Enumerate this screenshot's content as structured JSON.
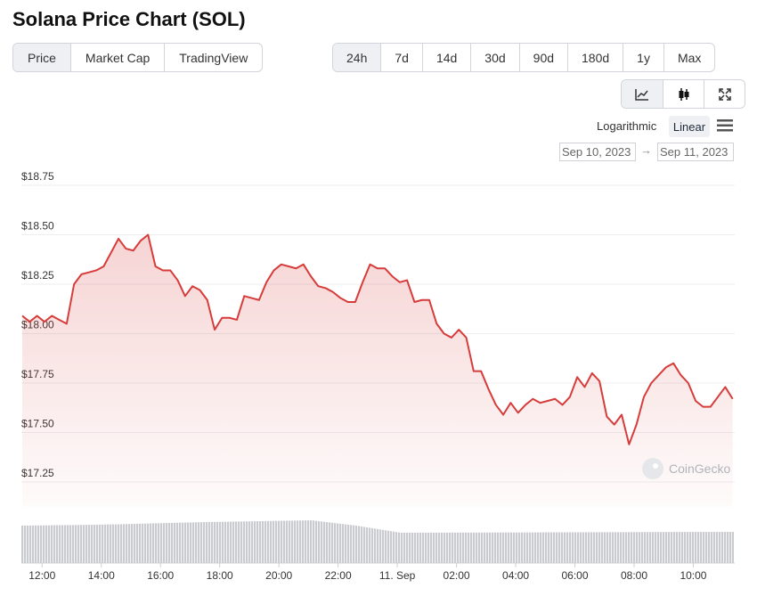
{
  "title": "Solana Price Chart (SOL)",
  "tabs": [
    "Price",
    "Market Cap",
    "TradingView"
  ],
  "ranges": [
    "24h",
    "7d",
    "14d",
    "30d",
    "90d",
    "180d",
    "1y",
    "Max"
  ],
  "scale_options": [
    "Logarithmic",
    "Linear"
  ],
  "date_from": "Sep 10, 2023",
  "date_to": "Sep 11, 2023",
  "watermark": "CoinGecko",
  "chart_data": {
    "type": "line",
    "color": "#d63c3a",
    "grid": true,
    "x": [
      -0.67,
      -0.42,
      -0.17,
      0.08,
      0.33,
      0.58,
      0.83,
      1.08,
      1.33,
      1.58,
      1.83,
      2.08,
      2.33,
      2.58,
      2.83,
      3.08,
      3.33,
      3.58,
      3.83,
      4.08,
      4.33,
      4.58,
      4.83,
      5.08,
      5.33,
      5.58,
      5.83,
      6.08,
      6.33,
      6.58,
      6.83,
      7.08,
      7.33,
      7.58,
      7.83,
      8.08,
      8.33,
      8.58,
      8.83,
      9.08,
      9.33,
      9.58,
      9.83,
      10.08,
      10.33,
      10.58,
      10.83,
      11.08,
      11.33,
      11.58,
      11.83,
      12.08,
      12.33,
      12.58,
      12.83,
      13.08,
      13.33,
      13.58,
      13.83,
      14.08,
      14.33,
      14.58,
      14.83,
      15.08,
      15.33,
      15.58,
      15.83,
      16.08,
      16.33,
      16.58,
      16.83,
      17.08,
      17.33,
      17.58,
      17.83,
      18.08,
      18.33,
      18.58,
      18.83,
      19.08,
      19.33,
      19.58,
      19.83,
      20.08,
      20.33,
      20.58,
      20.83,
      21.08,
      21.33,
      21.58,
      21.83,
      22.08,
      22.33,
      22.58,
      22.83,
      23.08,
      23.33
    ],
    "values": [
      18.09,
      18.06,
      18.09,
      18.06,
      18.09,
      18.07,
      18.05,
      18.25,
      18.3,
      18.31,
      18.32,
      18.34,
      18.41,
      18.48,
      18.43,
      18.42,
      18.47,
      18.5,
      18.34,
      18.32,
      18.32,
      18.27,
      18.19,
      18.24,
      18.22,
      18.17,
      18.02,
      18.08,
      18.08,
      18.07,
      18.19,
      18.18,
      18.17,
      18.26,
      18.32,
      18.35,
      18.34,
      18.33,
      18.35,
      18.29,
      18.24,
      18.23,
      18.21,
      18.18,
      18.16,
      18.16,
      18.26,
      18.35,
      18.33,
      18.33,
      18.29,
      18.26,
      18.27,
      18.16,
      18.17,
      18.17,
      18.05,
      18.0,
      17.98,
      18.02,
      17.98,
      17.81,
      17.81,
      17.72,
      17.64,
      17.59,
      17.65,
      17.6,
      17.64,
      17.67,
      17.65,
      17.66,
      17.67,
      17.64,
      17.68,
      17.78,
      17.73,
      17.8,
      17.76,
      17.58,
      17.54,
      17.59,
      17.44,
      17.54,
      17.68,
      17.75,
      17.79,
      17.83,
      17.85,
      17.79,
      17.75,
      17.66,
      17.63,
      17.63,
      17.68,
      17.73,
      17.67
    ],
    "xlim": [
      -0.7,
      23.4
    ],
    "xticks": [
      {
        "value": 0,
        "label": "12:00"
      },
      {
        "value": 2,
        "label": "14:00"
      },
      {
        "value": 4,
        "label": "16:00"
      },
      {
        "value": 6,
        "label": "18:00"
      },
      {
        "value": 8,
        "label": "20:00"
      },
      {
        "value": 10,
        "label": "22:00"
      },
      {
        "value": 12,
        "label": "11. Sep"
      },
      {
        "value": 14,
        "label": "02:00"
      },
      {
        "value": 16,
        "label": "04:00"
      },
      {
        "value": 18,
        "label": "06:00"
      },
      {
        "value": 20,
        "label": "08:00"
      },
      {
        "value": 22,
        "label": "10:00"
      }
    ],
    "ylim": [
      17.125,
      18.8
    ],
    "yticks": [
      {
        "value": 17.25,
        "label": "$17.25"
      },
      {
        "value": 17.5,
        "label": "$17.50"
      },
      {
        "value": 17.75,
        "label": "$17.75"
      },
      {
        "value": 18,
        "label": "$18.00"
      },
      {
        "value": 18.25,
        "label": "$18.25"
      },
      {
        "value": 18.5,
        "label": "$18.50"
      },
      {
        "value": 18.75,
        "label": "$18.75"
      }
    ]
  }
}
